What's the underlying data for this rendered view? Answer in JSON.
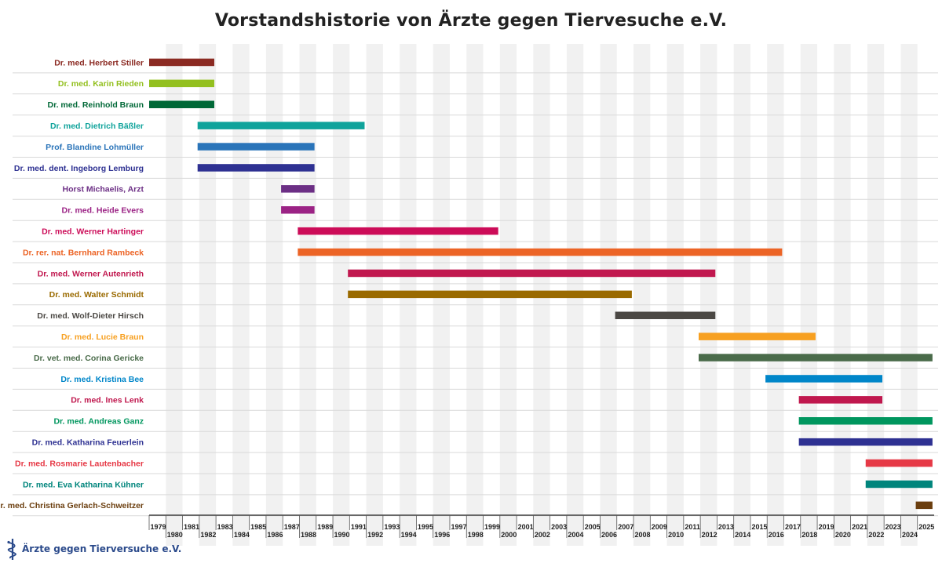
{
  "chart_data": {
    "type": "timeline",
    "title": "Vorstandshistorie von Ärzte gegen Tiervesuche e.V.",
    "x_range": [
      1979,
      2025
    ],
    "x_ticks": [
      1979,
      1980,
      1981,
      1982,
      1983,
      1984,
      1985,
      1986,
      1987,
      1988,
      1989,
      1990,
      1991,
      1992,
      1993,
      1994,
      1995,
      1996,
      1997,
      1998,
      1999,
      2000,
      2001,
      2002,
      2003,
      2004,
      2005,
      2006,
      2007,
      2008,
      2009,
      2010,
      2011,
      2012,
      2013,
      2014,
      2015,
      2016,
      2017,
      2018,
      2019,
      2020,
      2021,
      2022,
      2023,
      2024,
      2025
    ],
    "grid": "alternating-vertical-bands",
    "series": [
      {
        "name": "Dr. med. Herbert Stiller",
        "start": 1979.0,
        "end": 1982.9,
        "color": "#8b2a22"
      },
      {
        "name": "Dr. med. Karin Rieden",
        "start": 1979.0,
        "end": 1982.9,
        "color": "#93c01f"
      },
      {
        "name": "Dr. med. Reinhold Braun",
        "start": 1979.0,
        "end": 1982.9,
        "color": "#006837"
      },
      {
        "name": "Dr. med. Dietrich Bäßler",
        "start": 1981.9,
        "end": 1991.9,
        "color": "#0fa39b"
      },
      {
        "name": "Prof. Blandine Lohmüller",
        "start": 1981.9,
        "end": 1988.9,
        "color": "#2a74b9"
      },
      {
        "name": "Dr. med. dent. Ingeborg Lemburg",
        "start": 1981.9,
        "end": 1988.9,
        "color": "#2e3192"
      },
      {
        "name": "Horst Michaelis, Arzt",
        "start": 1986.9,
        "end": 1988.9,
        "color": "#6c2f85"
      },
      {
        "name": "Dr. med. Heide Evers",
        "start": 1986.9,
        "end": 1988.9,
        "color": "#9b2385"
      },
      {
        "name": "Dr. med. Werner Hartinger",
        "start": 1987.9,
        "end": 1999.9,
        "color": "#cc0c58"
      },
      {
        "name": "Dr. rer. nat. Bernhard Rambeck",
        "start": 1987.9,
        "end": 2016.9,
        "color": "#ec6426"
      },
      {
        "name": "Dr. med. Werner Autenrieth",
        "start": 1990.9,
        "end": 2012.9,
        "color": "#c1184f"
      },
      {
        "name": "Dr. med. Walter Schmidt",
        "start": 1990.9,
        "end": 2007.9,
        "color": "#9a6a00"
      },
      {
        "name": "Dr. med. Wolf-Dieter Hirsch",
        "start": 2006.9,
        "end": 2012.9,
        "color": "#4b4844"
      },
      {
        "name": "Dr. med. Lucie Braun",
        "start": 2011.9,
        "end": 2018.9,
        "color": "#f7a021"
      },
      {
        "name": "Dr. vet. med. Corina Gericke",
        "start": 2011.9,
        "end": 2025.9,
        "color": "#4a6b4a"
      },
      {
        "name": "Dr. med. Kristina Bee",
        "start": 2015.9,
        "end": 2022.9,
        "color": "#0086c9"
      },
      {
        "name": "Dr. med. Ines Lenk",
        "start": 2017.9,
        "end": 2022.9,
        "color": "#c0184e"
      },
      {
        "name": "Dr. med. Andreas Ganz",
        "start": 2017.9,
        "end": 2025.9,
        "color": "#00965e"
      },
      {
        "name": "Dr. med. Katharina Feuerlein",
        "start": 2017.9,
        "end": 2025.9,
        "color": "#2e3192"
      },
      {
        "name": "Dr. med. Rosmarie Lautenbacher",
        "start": 2021.9,
        "end": 2025.9,
        "color": "#e63946"
      },
      {
        "name": "Dr. med. Eva Katharina Kühner",
        "start": 2021.9,
        "end": 2025.9,
        "color": "#00857c"
      },
      {
        "name": "Dr. med. Christina Gerlach-Schweitzer",
        "start": 2024.9,
        "end": 2025.9,
        "color": "#6b3e0e"
      }
    ]
  },
  "logo": {
    "text": "Ärzte gegen Tierversuche e.V.",
    "icon": "aesculapian-staff-icon",
    "color": "#2b4a8b"
  }
}
